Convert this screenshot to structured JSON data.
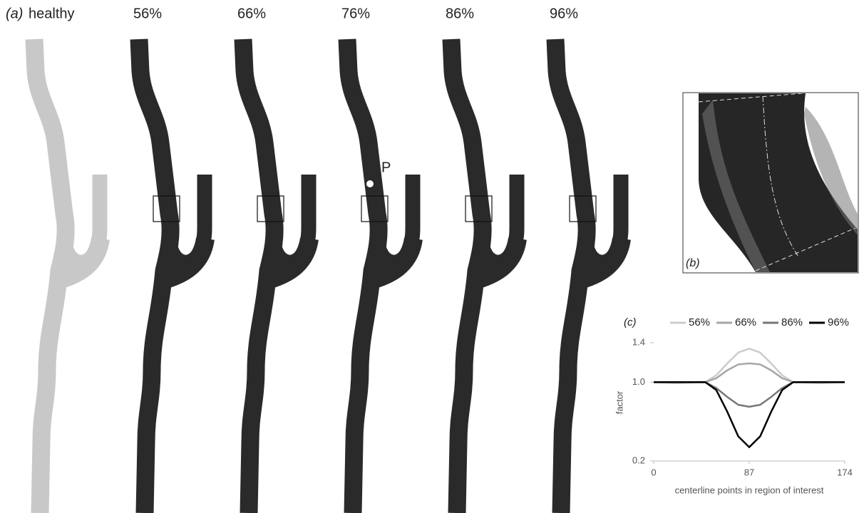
{
  "panel_a": {
    "label": "(a)",
    "models": [
      "healthy",
      "56%",
      "66%",
      "76%",
      "86%",
      "96%"
    ],
    "point_label": "P"
  },
  "panel_b": {
    "label": "(b)"
  },
  "chart_data": {
    "type": "line",
    "label": "(c)",
    "x_label": "centerline points in region of interest",
    "y_label": "factor",
    "x": [
      0,
      20,
      47,
      57,
      67,
      77,
      87,
      97,
      107,
      117,
      127,
      150,
      174
    ],
    "series": [
      {
        "name": "56%",
        "color": "#cccccc",
        "values": [
          1.0,
          0.99,
          1.0,
          1.07,
          1.19,
          1.3,
          1.34,
          1.3,
          1.19,
          1.07,
          1.0,
          0.99,
          1.0
        ]
      },
      {
        "name": "66%",
        "color": "#a6a6a6",
        "values": [
          1.0,
          1.0,
          1.0,
          1.04,
          1.12,
          1.18,
          1.19,
          1.18,
          1.12,
          1.04,
          1.0,
          1.0,
          1.0
        ]
      },
      {
        "name": "86%",
        "color": "#777777",
        "values": [
          1.0,
          1.0,
          1.0,
          0.94,
          0.85,
          0.77,
          0.75,
          0.77,
          0.85,
          0.94,
          1.0,
          1.0,
          1.0
        ]
      },
      {
        "name": "96%",
        "color": "#000000",
        "values": [
          1.0,
          1.0,
          1.0,
          0.92,
          0.7,
          0.45,
          0.34,
          0.45,
          0.7,
          0.92,
          1.0,
          1.0,
          1.0
        ]
      }
    ],
    "xlim": [
      0,
      174
    ],
    "xticks": [
      0,
      87,
      174
    ],
    "ylim": [
      0.2,
      1.4
    ],
    "yticks": [
      0.2,
      {
        "value": 1.0,
        "label": "1.0"
      },
      1.4
    ]
  }
}
